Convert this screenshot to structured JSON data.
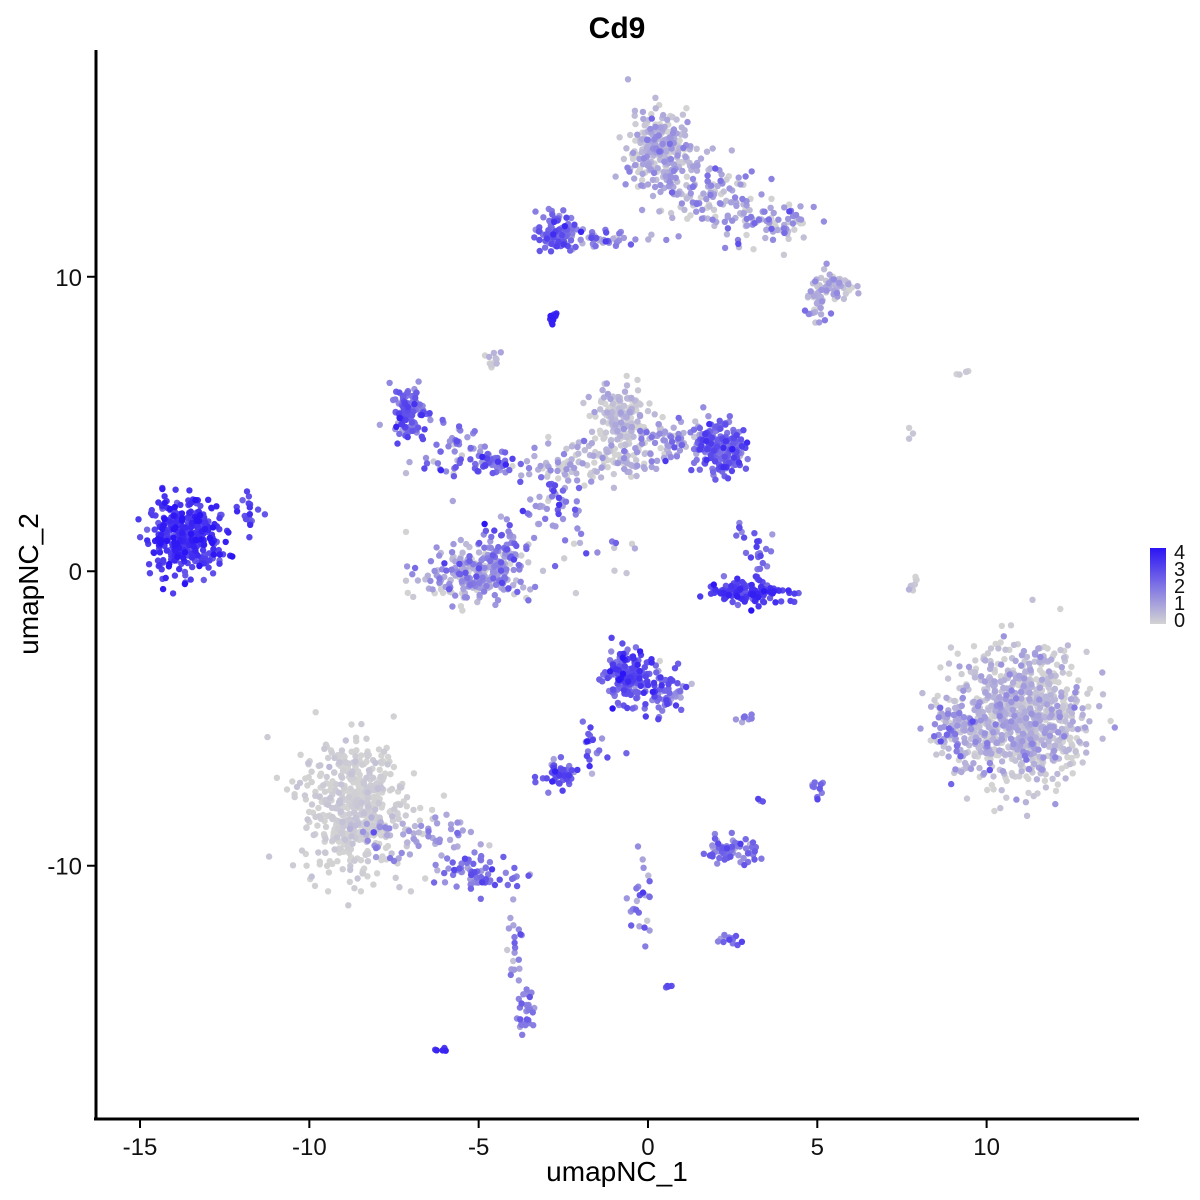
{
  "chart_data": {
    "type": "scatter",
    "title": "Cd9",
    "xlabel": "umapNC_1",
    "ylabel": "umapNC_2",
    "xlim": [
      -16.3,
      14.5
    ],
    "ylim": [
      -18.6,
      17.7
    ],
    "x_ticks": [
      -15,
      -10,
      -5,
      0,
      5,
      10
    ],
    "x_tick_labels": [
      "-15",
      "-10",
      "-5",
      "0",
      "5",
      "10"
    ],
    "y_ticks": [
      -10,
      0,
      10
    ],
    "y_tick_labels": [
      "-10",
      "0",
      "10"
    ],
    "grid": false,
    "legend": {
      "placement": "right",
      "type": "colorbar",
      "min": 0,
      "max": 4,
      "breaks": [
        "4",
        "3",
        "2",
        "1",
        "0"
      ],
      "low_color": "#d3d3d3",
      "high_color": "#2b14f5"
    },
    "clusters": [
      {
        "cx": -13.7,
        "cy": 1.2,
        "sx": 0.7,
        "sy": 0.8,
        "n": 380,
        "expr_mean": 3.2,
        "expr_sd": 0.5
      },
      {
        "cx": -11.8,
        "cy": 2.2,
        "sx": 0.3,
        "sy": 0.6,
        "n": 20,
        "expr_mean": 2.8,
        "expr_sd": 0.5
      },
      {
        "cx": -8.7,
        "cy": -8.0,
        "sx": 1.0,
        "sy": 1.5,
        "n": 520,
        "expr_mean": 0.05,
        "expr_sd": 0.15
      },
      {
        "cx": -7.0,
        "cy": -9.0,
        "sx": 1.3,
        "sy": 0.5,
        "n": 70,
        "expr_mean": 1.0,
        "expr_sd": 0.5
      },
      {
        "cx": -5.0,
        "cy": -10.2,
        "sx": 0.9,
        "sy": 0.4,
        "n": 70,
        "expr_mean": 2.0,
        "expr_sd": 0.6
      },
      {
        "cx": -3.9,
        "cy": -12.6,
        "sx": 0.2,
        "sy": 0.9,
        "n": 20,
        "expr_mean": 1.3,
        "expr_sd": 0.6
      },
      {
        "cx": -3.6,
        "cy": -15.0,
        "sx": 0.2,
        "sy": 0.5,
        "n": 30,
        "expr_mean": 1.8,
        "expr_sd": 0.5
      },
      {
        "cx": -6.1,
        "cy": -16.3,
        "sx": 0.08,
        "sy": 0.06,
        "n": 6,
        "expr_mean": 3.5,
        "expr_sd": 0.3
      },
      {
        "cx": -7.1,
        "cy": 5.4,
        "sx": 0.35,
        "sy": 0.6,
        "n": 110,
        "expr_mean": 2.2,
        "expr_sd": 0.6
      },
      {
        "cx": -5.8,
        "cy": 4.1,
        "sx": 0.7,
        "sy": 0.8,
        "n": 50,
        "expr_mean": 1.7,
        "expr_sd": 0.8
      },
      {
        "cx": -4.5,
        "cy": 3.7,
        "sx": 0.4,
        "sy": 0.3,
        "n": 45,
        "expr_mean": 2.0,
        "expr_sd": 0.6
      },
      {
        "cx": -5.2,
        "cy": -0.1,
        "sx": 1.1,
        "sy": 0.6,
        "n": 250,
        "expr_mean": 0.9,
        "expr_sd": 0.8
      },
      {
        "cx": -4.3,
        "cy": 0.6,
        "sx": 0.4,
        "sy": 0.7,
        "n": 60,
        "expr_mean": 1.8,
        "expr_sd": 0.7
      },
      {
        "cx": -0.8,
        "cy": 5.0,
        "sx": 0.6,
        "sy": 0.9,
        "n": 180,
        "expr_mean": 0.3,
        "expr_sd": 0.4
      },
      {
        "cx": -1.8,
        "cy": 3.7,
        "sx": 1.3,
        "sy": 0.5,
        "n": 100,
        "expr_mean": 0.6,
        "expr_sd": 0.6
      },
      {
        "cx": 2.1,
        "cy": 4.2,
        "sx": 0.5,
        "sy": 0.6,
        "n": 200,
        "expr_mean": 2.3,
        "expr_sd": 0.6
      },
      {
        "cx": 0.5,
        "cy": 4.3,
        "sx": 0.9,
        "sy": 0.5,
        "n": 70,
        "expr_mean": 1.2,
        "expr_sd": 0.7
      },
      {
        "cx": -2.8,
        "cy": 2.2,
        "sx": 0.5,
        "sy": 0.7,
        "n": 40,
        "expr_mean": 1.5,
        "expr_sd": 0.9
      },
      {
        "cx": -4.6,
        "cy": 7.2,
        "sx": 0.2,
        "sy": 0.4,
        "n": 12,
        "expr_mean": 0.4,
        "expr_sd": 0.4
      },
      {
        "cx": -1.9,
        "cy": 1.0,
        "sx": 0.9,
        "sy": 0.7,
        "n": 20,
        "expr_mean": 1.5,
        "expr_sd": 0.9
      },
      {
        "cx": -2.8,
        "cy": 8.6,
        "sx": 0.08,
        "sy": 0.12,
        "n": 12,
        "expr_mean": 3.5,
        "expr_sd": 0.3
      },
      {
        "cx": 3.0,
        "cy": -0.7,
        "sx": 0.9,
        "sy": 0.25,
        "n": 140,
        "expr_mean": 3.0,
        "expr_sd": 0.5
      },
      {
        "cx": 3.3,
        "cy": 0.6,
        "sx": 0.2,
        "sy": 0.5,
        "n": 20,
        "expr_mean": 2.2,
        "expr_sd": 0.6
      },
      {
        "cx": 2.7,
        "cy": 1.3,
        "sx": 0.15,
        "sy": 0.3,
        "n": 6,
        "expr_mean": 2.5,
        "expr_sd": 0.6
      },
      {
        "cx": 0.3,
        "cy": 14.3,
        "sx": 0.6,
        "sy": 0.9,
        "n": 260,
        "expr_mean": 0.6,
        "expr_sd": 0.6
      },
      {
        "cx": -2.7,
        "cy": 11.5,
        "sx": 0.4,
        "sy": 0.45,
        "n": 90,
        "expr_mean": 2.2,
        "expr_sd": 0.6
      },
      {
        "cx": -1.2,
        "cy": 11.3,
        "sx": 0.9,
        "sy": 0.25,
        "n": 40,
        "expr_mean": 1.6,
        "expr_sd": 0.7
      },
      {
        "cx": 1.8,
        "cy": 12.8,
        "sx": 1.0,
        "sy": 0.8,
        "n": 120,
        "expr_mean": 0.8,
        "expr_sd": 0.7
      },
      {
        "cx": 3.6,
        "cy": 11.8,
        "sx": 0.9,
        "sy": 0.45,
        "n": 80,
        "expr_mean": 1.0,
        "expr_sd": 0.8
      },
      {
        "cx": 5.4,
        "cy": 9.7,
        "sx": 0.4,
        "sy": 0.3,
        "n": 60,
        "expr_mean": 0.6,
        "expr_sd": 0.6
      },
      {
        "cx": 4.9,
        "cy": 9.0,
        "sx": 0.3,
        "sy": 0.5,
        "n": 30,
        "expr_mean": 0.6,
        "expr_sd": 0.6
      },
      {
        "cx": -0.6,
        "cy": -3.6,
        "sx": 0.4,
        "sy": 0.6,
        "n": 180,
        "expr_mean": 2.6,
        "expr_sd": 0.6
      },
      {
        "cx": 0.5,
        "cy": -4.2,
        "sx": 0.5,
        "sy": 0.6,
        "n": 60,
        "expr_mean": 2.1,
        "expr_sd": 0.7
      },
      {
        "cx": -1.6,
        "cy": -5.7,
        "sx": 0.3,
        "sy": 0.7,
        "n": 20,
        "expr_mean": 2.3,
        "expr_sd": 0.6
      },
      {
        "cx": -2.6,
        "cy": -6.9,
        "sx": 0.35,
        "sy": 0.3,
        "n": 50,
        "expr_mean": 2.4,
        "expr_sd": 0.6
      },
      {
        "cx": 2.4,
        "cy": -9.5,
        "sx": 0.55,
        "sy": 0.3,
        "n": 70,
        "expr_mean": 1.8,
        "expr_sd": 0.6
      },
      {
        "cx": 2.4,
        "cy": -12.5,
        "sx": 0.25,
        "sy": 0.15,
        "n": 15,
        "expr_mean": 2.2,
        "expr_sd": 0.6
      },
      {
        "cx": -0.2,
        "cy": -11.2,
        "sx": 0.25,
        "sy": 1.0,
        "n": 25,
        "expr_mean": 1.5,
        "expr_sd": 0.7
      },
      {
        "cx": 0.6,
        "cy": -14.1,
        "sx": 0.05,
        "sy": 0.05,
        "n": 5,
        "expr_mean": 3.0,
        "expr_sd": 0.3
      },
      {
        "cx": 5.0,
        "cy": -7.5,
        "sx": 0.1,
        "sy": 0.35,
        "n": 10,
        "expr_mean": 1.9,
        "expr_sd": 0.5
      },
      {
        "cx": 2.9,
        "cy": -5.0,
        "sx": 0.3,
        "sy": 0.08,
        "n": 8,
        "expr_mean": 1.5,
        "expr_sd": 0.6
      },
      {
        "cx": 3.3,
        "cy": -7.8,
        "sx": 0.1,
        "sy": 0.1,
        "n": 3,
        "expr_mean": 2.0,
        "expr_sd": 0.5
      },
      {
        "cx": 11.0,
        "cy": -5.0,
        "sx": 1.3,
        "sy": 1.5,
        "n": 900,
        "expr_mean": 0.35,
        "expr_sd": 0.55
      },
      {
        "cx": 9.2,
        "cy": -5.5,
        "sx": 0.5,
        "sy": 0.8,
        "n": 80,
        "expr_mean": 1.2,
        "expr_sd": 0.7
      },
      {
        "cx": 7.8,
        "cy": -0.3,
        "sx": 0.1,
        "sy": 0.4,
        "n": 10,
        "expr_mean": 0.2,
        "expr_sd": 0.3
      },
      {
        "cx": 7.8,
        "cy": 4.6,
        "sx": 0.1,
        "sy": 0.2,
        "n": 3,
        "expr_mean": 0.1,
        "expr_sd": 0.2
      },
      {
        "cx": 9.4,
        "cy": 6.7,
        "sx": 0.2,
        "sy": 0.05,
        "n": 4,
        "expr_mean": 0.1,
        "expr_sd": 0.2
      }
    ]
  }
}
